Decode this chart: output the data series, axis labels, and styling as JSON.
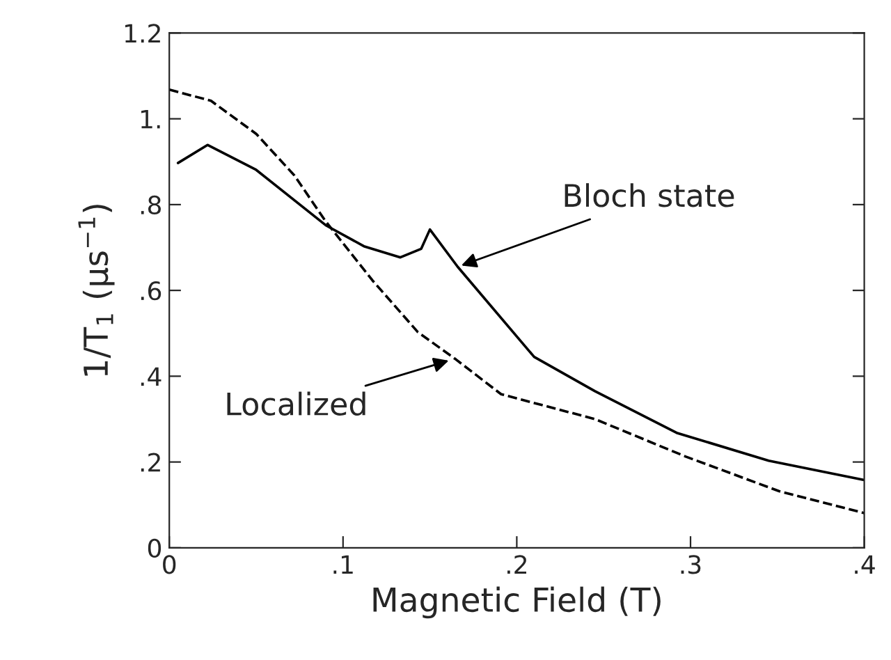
{
  "chart_data": {
    "type": "line",
    "xlabel": "Magnetic Field (T)",
    "ylabel": "1/T$_{1}$ (μs$^{−1}$)",
    "xlim": [
      0,
      0.4
    ],
    "ylim": [
      0,
      1.2
    ],
    "xticks": [
      {
        "value": 0,
        "label": "0"
      },
      {
        "value": 0.1,
        "label": ".1"
      },
      {
        "value": 0.2,
        "label": ".2"
      },
      {
        "value": 0.3,
        "label": ".3"
      },
      {
        "value": 0.4,
        "label": ".4"
      }
    ],
    "yticks": [
      {
        "value": 0,
        "label": "0"
      },
      {
        "value": 0.2,
        "label": ".2"
      },
      {
        "value": 0.4,
        "label": ".4"
      },
      {
        "value": 0.6,
        "label": ".6"
      },
      {
        "value": 0.8,
        "label": ".8"
      },
      {
        "value": 1.0,
        "label": "1."
      },
      {
        "value": 1.2,
        "label": "1.2"
      }
    ],
    "grid": false,
    "legend": false,
    "series": [
      {
        "color": "#000000",
        "line_style": "solid",
        "x": [
          0.005,
          0.022,
          0.05,
          0.09,
          0.112,
          0.133,
          0.145,
          0.15,
          0.166,
          0.21,
          0.245,
          0.292,
          0.345,
          0.4
        ],
        "values": [
          0.897,
          0.939,
          0.881,
          0.752,
          0.703,
          0.677,
          0.697,
          0.742,
          0.655,
          0.445,
          0.365,
          0.268,
          0.203,
          0.158
        ]
      },
      {
        "color": "#000000",
        "line_style": "dashed",
        "x": [
          0,
          0.024,
          0.05,
          0.072,
          0.09,
          0.117,
          0.143,
          0.165,
          0.191,
          0.245,
          0.297,
          0.351,
          0.4
        ],
        "values": [
          1.068,
          1.042,
          0.965,
          0.868,
          0.761,
          0.623,
          0.503,
          0.439,
          0.358,
          0.3,
          0.213,
          0.132,
          0.081
        ]
      }
    ],
    "annotations": [
      {
        "text": "Bloch state",
        "x": 0.166,
        "y": 0.655
      },
      {
        "text": "Localized",
        "x": 0.163,
        "y": 0.439
      }
    ]
  }
}
